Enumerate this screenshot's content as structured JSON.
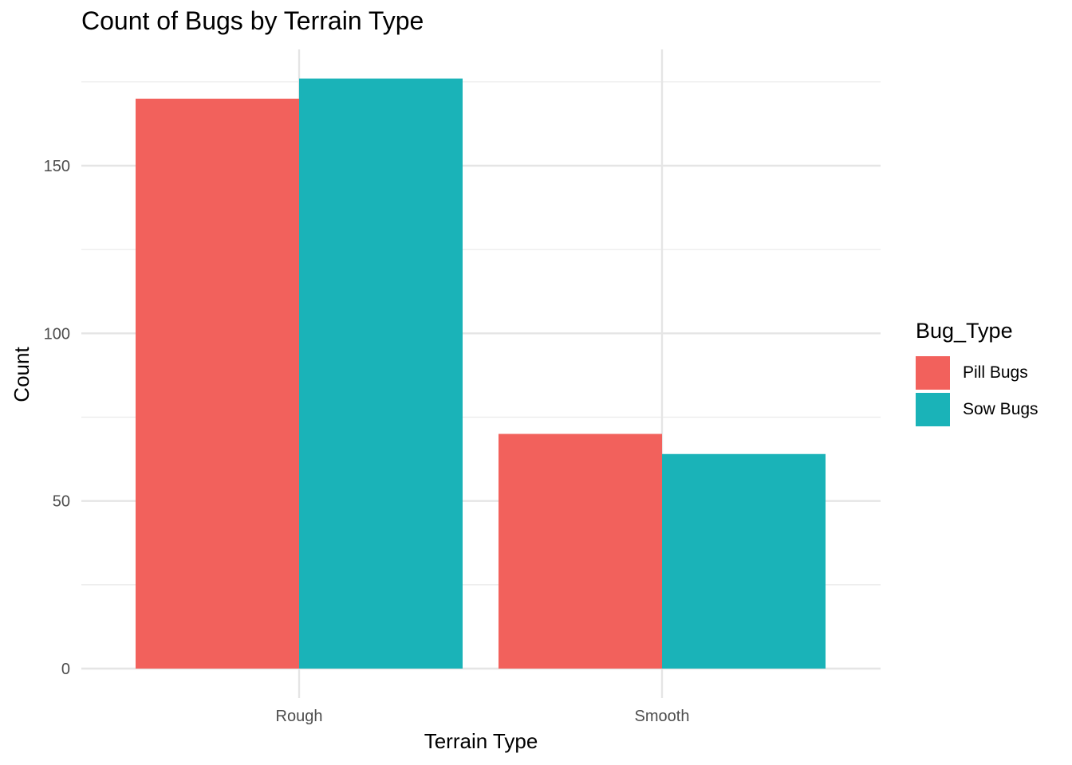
{
  "chart_data": {
    "type": "bar",
    "title": "Count of Bugs by Terrain Type",
    "xlabel": "Terrain Type",
    "ylabel": "Count",
    "categories": [
      "Rough",
      "Smooth"
    ],
    "series": [
      {
        "name": "Pill Bugs",
        "color": "#F8766D",
        "render_color": "#F2615C",
        "values": [
          170,
          70
        ]
      },
      {
        "name": "Sow Bugs",
        "color": "#00BFC4",
        "render_color": "#1AB3B8",
        "values": [
          176,
          64
        ]
      }
    ],
    "ylim": [
      0,
      185
    ],
    "yticks": [
      0,
      50,
      100,
      150
    ],
    "grid": true,
    "legend": {
      "title": "Bug_Type",
      "position": "right"
    }
  }
}
